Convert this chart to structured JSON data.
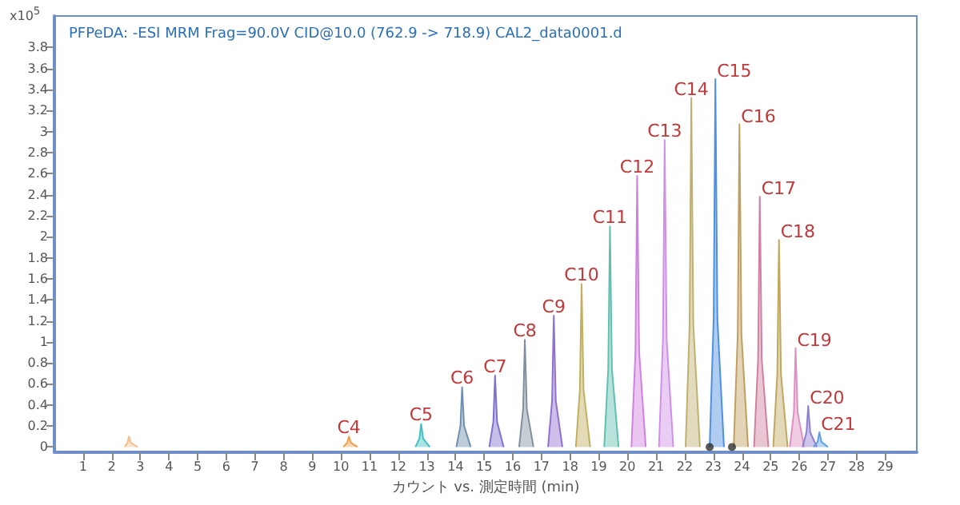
{
  "chart_data": {
    "type": "area",
    "title": "PFPeDA: -ESI MRM Frag=90.0V CID@10.0 (762.9 -> 718.9) CAL2_data0001.d",
    "xlabel": "カウント vs. 測定時間 (min)",
    "ylabel": "x10$^{5}$",
    "xlim": [
      0,
      30.1
    ],
    "xticks": [
      1,
      2,
      3,
      4,
      5,
      6,
      7,
      8,
      9,
      10,
      11,
      12,
      13,
      14,
      15,
      16,
      17,
      18,
      19,
      20,
      21,
      22,
      23,
      24,
      25,
      26,
      27,
      28,
      29
    ],
    "ylim": [
      -0.05,
      4.1
    ],
    "yticks": [
      0,
      0.2,
      0.4,
      0.6,
      0.8,
      1,
      1.2,
      1.4,
      1.6,
      1.8,
      2,
      2.2,
      2.4,
      2.6,
      2.8,
      3,
      3.2,
      3.4,
      3.6,
      3.8
    ],
    "grid": false,
    "legend": false,
    "marker": "none",
    "line_style": "solid",
    "series": [
      {
        "color": "#f5c090",
        "x": [
          2.45,
          2.55,
          2.6,
          2.67,
          2.9
        ],
        "values": [
          0,
          0.04,
          0.1,
          0.04,
          0
        ]
      },
      {
        "name": "C4",
        "color": "#f0a050",
        "x": [
          10.08,
          10.22,
          10.28,
          10.35,
          10.58
        ],
        "values": [
          0,
          0.04,
          0.1,
          0.04,
          0
        ]
      },
      {
        "name": "C5",
        "color": "#40c0c0",
        "x": [
          12.6,
          12.74,
          12.8,
          12.87,
          13.1
        ],
        "values": [
          0,
          0.08,
          0.22,
          0.08,
          0
        ]
      },
      {
        "name": "C6",
        "color": "#7090b0",
        "x": [
          14.03,
          14.17,
          14.23,
          14.3,
          14.53
        ],
        "values": [
          0,
          0.2,
          0.57,
          0.2,
          0
        ]
      },
      {
        "name": "C7",
        "color": "#8070d0",
        "x": [
          15.18,
          15.32,
          15.38,
          15.45,
          15.68
        ],
        "values": [
          0,
          0.24,
          0.68,
          0.24,
          0
        ]
      },
      {
        "name": "C8",
        "color": "#8090a0",
        "x": [
          16.22,
          16.36,
          16.42,
          16.49,
          16.72
        ],
        "values": [
          0,
          0.36,
          1.02,
          0.36,
          0
        ]
      },
      {
        "name": "C9",
        "color": "#9070d0",
        "x": [
          17.23,
          17.37,
          17.43,
          17.5,
          17.73
        ],
        "values": [
          0,
          0.44,
          1.25,
          0.44,
          0
        ]
      },
      {
        "name": "C10",
        "color": "#c0b060",
        "x": [
          18.2,
          18.34,
          18.4,
          18.47,
          18.7
        ],
        "values": [
          0,
          0.54,
          1.55,
          0.54,
          0
        ]
      },
      {
        "name": "C11",
        "color": "#60c0b0",
        "x": [
          19.19,
          19.33,
          19.39,
          19.46,
          19.69
        ],
        "values": [
          0,
          0.74,
          2.1,
          0.74,
          0
        ]
      },
      {
        "name": "C12",
        "color": "#d080e0",
        "x": [
          20.14,
          20.28,
          20.34,
          20.41,
          20.64
        ],
        "values": [
          0,
          0.9,
          2.58,
          0.9,
          0
        ]
      },
      {
        "name": "C13",
        "color": "#d090e8",
        "x": [
          21.1,
          21.24,
          21.3,
          21.37,
          21.6
        ],
        "values": [
          0,
          1.02,
          2.92,
          1.02,
          0
        ]
      },
      {
        "name": "C14",
        "color": "#c0b070",
        "x": [
          22.03,
          22.17,
          22.23,
          22.3,
          22.53
        ],
        "values": [
          0,
          1.16,
          3.32,
          1.16,
          0
        ]
      },
      {
        "name": "C15",
        "color": "#5090e0",
        "x": [
          22.87,
          23.01,
          23.07,
          23.14,
          23.37
        ],
        "values": [
          0,
          1.22,
          3.5,
          1.22,
          0
        ]
      },
      {
        "name": "C16",
        "color": "#c0a060",
        "x": [
          23.71,
          23.85,
          23.91,
          23.98,
          24.21
        ],
        "values": [
          0,
          1.07,
          3.07,
          1.07,
          0
        ]
      },
      {
        "name": "C17",
        "color": "#d080a0",
        "x": [
          24.42,
          24.56,
          24.62,
          24.69,
          24.92
        ],
        "values": [
          0,
          0.83,
          2.38,
          0.83,
          0
        ]
      },
      {
        "name": "C18",
        "color": "#c0a860",
        "x": [
          25.09,
          25.23,
          25.29,
          25.36,
          25.59
        ],
        "values": [
          0,
          0.69,
          1.97,
          0.69,
          0
        ]
      },
      {
        "name": "C19",
        "color": "#e090c0",
        "x": [
          25.67,
          25.81,
          25.87,
          25.94,
          26.17
        ],
        "values": [
          0,
          0.33,
          0.94,
          0.33,
          0
        ]
      },
      {
        "name": "C20",
        "color": "#9080d0",
        "x": [
          26.11,
          26.25,
          26.31,
          26.38,
          26.61
        ],
        "values": [
          0,
          0.14,
          0.39,
          0.14,
          0
        ]
      },
      {
        "name": "C21",
        "color": "#60a0e0",
        "x": [
          26.5,
          26.64,
          26.7,
          26.77,
          27.0
        ],
        "values": [
          0,
          0.05,
          0.14,
          0.05,
          0
        ]
      },
      {
        "type": "scatter",
        "marker": "circle",
        "color": "#303030",
        "x": [
          22.87,
          23.65
        ],
        "values": [
          0,
          0
        ]
      }
    ]
  }
}
